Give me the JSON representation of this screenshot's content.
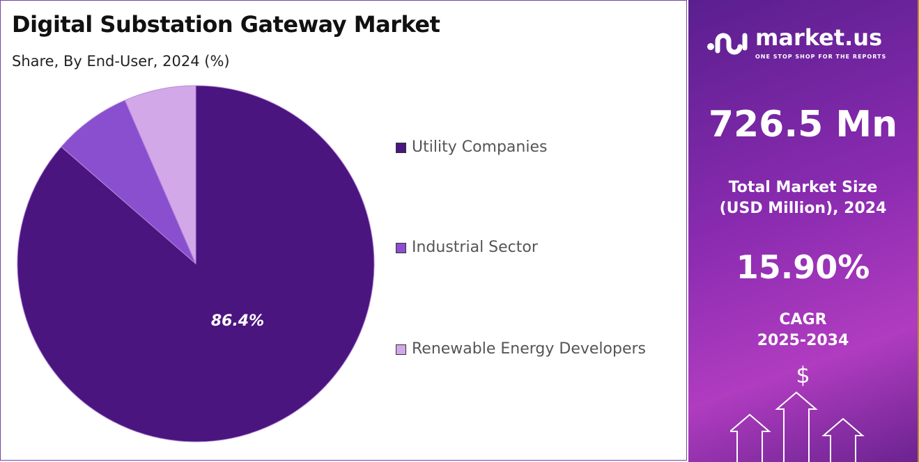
{
  "title": "Digital Substation Gateway Market",
  "subtitle": "Share, By End-User, 2024 (%)",
  "chart_data": {
    "type": "pie",
    "title": "Digital Substation Gateway Market",
    "subtitle": "Share, By End-User, 2024 (%)",
    "categories": [
      "Utility Companies",
      "Industrial Sector",
      "Renewable Energy Developers"
    ],
    "values": [
      86.4,
      7.1,
      6.5
    ],
    "colors": [
      "#4b1580",
      "#8a4fcf",
      "#d2a8e8"
    ],
    "data_labels": [
      "86.4%",
      "",
      ""
    ],
    "legend": "right"
  },
  "panel": {
    "brand": "market.us",
    "tagline": "ONE STOP SHOP FOR THE REPORTS",
    "market_size": "726.5 Mn",
    "market_size_label_1": "Total Market Size",
    "market_size_label_2": "(USD Million), 2024",
    "cagr": "15.90%",
    "cagr_label_1": "CAGR",
    "cagr_label_2": "2025-2034",
    "dollar": "$"
  }
}
